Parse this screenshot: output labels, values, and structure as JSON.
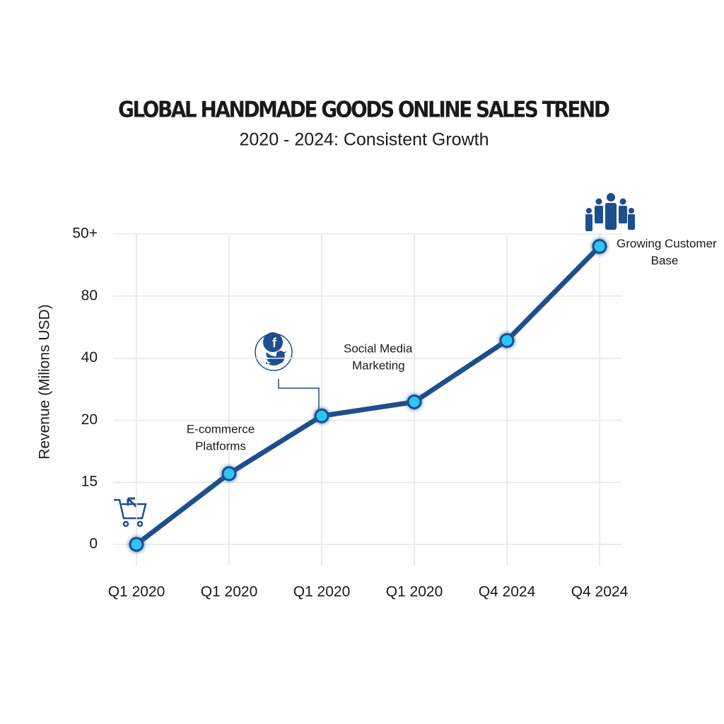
{
  "chart_data": {
    "type": "line",
    "title": "GLOBAL HANDMADE GOODS ONLINE SALES TREND",
    "subtitle": "2020 - 2024: Consistent Growth",
    "y_label": "Revenue (Milions USD)",
    "categories": [
      "Q1 2020",
      "Q1 2020",
      "Q1 2020",
      "Q1 2020",
      "Q4 2024",
      "Q4 2024"
    ],
    "series": [
      {
        "name": "Revenue",
        "color": "#1f4e8c",
        "values": [
          0,
          15.7,
          21.4,
          25.9,
          51.4,
          96
        ]
      }
    ],
    "ylim": [
      0,
      100
    ],
    "yticks": [
      0,
      15,
      20,
      40,
      80,
      {
        "value": 100,
        "label": "50+"
      }
    ],
    "grid": true,
    "annotations": [
      {
        "point": 1,
        "lines": [
          "E-commerce",
          "Platforms"
        ]
      },
      {
        "point": 2,
        "lines": [
          "Social Media",
          "Marketing"
        ]
      },
      {
        "point": 5,
        "lines": [
          "Growing Customer",
          "Base"
        ]
      }
    ]
  }
}
